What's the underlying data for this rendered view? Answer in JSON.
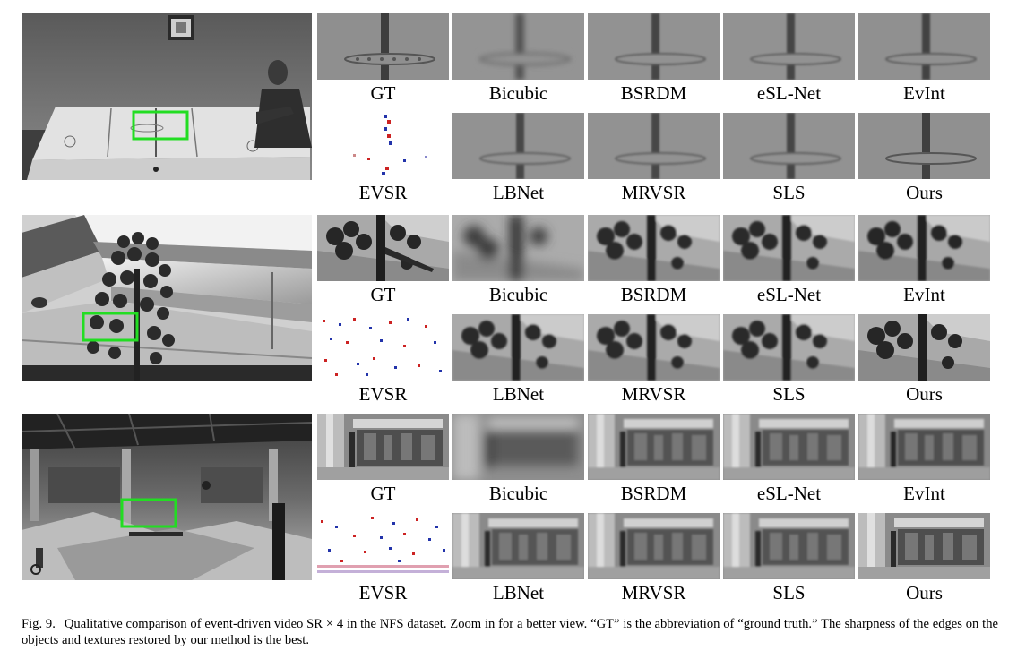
{
  "figure": {
    "number": "Fig. 9.",
    "caption": "Qualitative comparison of event-driven video SR × 4 in the NFS dataset. Zoom in for a better view. “GT” is the abbreviation of “ground truth.” The sharpness of the edges on the objects and textures restored by our method is the best."
  },
  "rows": [
    {
      "scene": "air-hockey",
      "labels_top": [
        "GT",
        "Bicubic",
        "BSRDM",
        "eSL-Net",
        "EvInt"
      ],
      "labels_bottom": [
        "EVSR",
        "LBNet",
        "MRVSR",
        "SLS",
        "Ours"
      ]
    },
    {
      "scene": "flower",
      "labels_top": [
        "GT",
        "Bicubic",
        "BSRDM",
        "eSL-Net",
        "EvInt"
      ],
      "labels_bottom": [
        "EVSR",
        "LBNet",
        "MRVSR",
        "SLS",
        "Ours"
      ]
    },
    {
      "scene": "skatepark",
      "labels_top": [
        "GT",
        "Bicubic",
        "BSRDM",
        "eSL-Net",
        "EvInt"
      ],
      "labels_bottom": [
        "EVSR",
        "LBNet",
        "MRVSR",
        "SLS",
        "Ours"
      ]
    }
  ],
  "colors": {
    "highlight_box": "#22dd22",
    "event_positive": "#cc2222",
    "event_negative": "#2233aa"
  }
}
